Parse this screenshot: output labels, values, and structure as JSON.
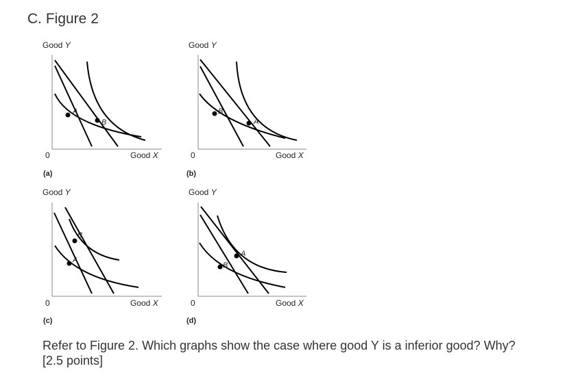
{
  "title": "C. Figure 2",
  "figure": {
    "panels": [
      {
        "tag": "(a)",
        "y_axis_name": "Good",
        "y_axis_var": "Y",
        "x_axis_name": "Good",
        "x_axis_var": "X",
        "origin": "0",
        "points": [
          {
            "label": "A"
          },
          {
            "label": "B"
          }
        ]
      },
      {
        "tag": "(b)",
        "y_axis_name": "Good",
        "y_axis_var": "Y",
        "x_axis_name": "Good",
        "x_axis_var": "X",
        "origin": "0",
        "points": [
          {
            "label": "B"
          },
          {
            "label": "A"
          }
        ]
      },
      {
        "tag": "(c)",
        "y_axis_name": "Good",
        "y_axis_var": "Y",
        "x_axis_name": "Good",
        "x_axis_var": "X",
        "origin": "0",
        "points": [
          {
            "label": "B"
          },
          {
            "label": "A"
          }
        ]
      },
      {
        "tag": "(d)",
        "y_axis_name": "Good",
        "y_axis_var": "Y",
        "x_axis_name": "Good",
        "x_axis_var": "X",
        "origin": "0",
        "points": [
          {
            "label": "A"
          },
          {
            "label": "B"
          }
        ]
      }
    ]
  },
  "question": {
    "text": "Refer to Figure 2. Which graphs show the case where good Y is a inferior good? Why? [2.5 points]"
  }
}
